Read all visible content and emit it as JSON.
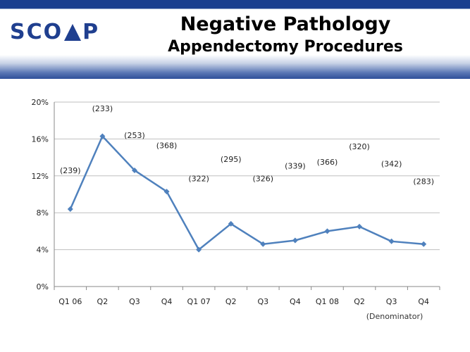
{
  "header": {
    "logo_text_1": "SCO",
    "logo_text_2": "P",
    "title": "Negative Pathology",
    "subtitle": "Appendectomy Procedures"
  },
  "chart_data": {
    "type": "line",
    "title": "Negative Pathology",
    "subtitle": "Appendectomy Procedures",
    "categories": [
      "Q1 06",
      "Q2",
      "Q3",
      "Q4",
      "Q1 07",
      "Q2",
      "Q3",
      "Q4",
      "Q1 08",
      "Q2",
      "Q3",
      "Q4"
    ],
    "series": [
      {
        "values": [
          8.4,
          16.3,
          12.6,
          10.3,
          4.0,
          6.8,
          4.6,
          5.0,
          6.0,
          6.5,
          4.9,
          4.6
        ],
        "color": "#4f81bd"
      }
    ],
    "denominators": [
      "(239)",
      "(233)",
      "(253)",
      "(368)",
      "(322)",
      "(295)",
      "(326)",
      "(339)",
      "(366)",
      "(320)",
      "(342)",
      "(283)"
    ],
    "denominator_label_values": [
      12.3,
      19.0,
      16.1,
      15.0,
      11.4,
      13.5,
      11.4,
      12.8,
      13.2,
      14.9,
      13.0,
      11.1
    ],
    "denominator_note": "(Denominator)",
    "yticks": [
      "0%",
      "4%",
      "8%",
      "12%",
      "16%",
      "20%"
    ],
    "ylim": [
      0,
      20
    ],
    "grid": true,
    "xlabel": "",
    "ylabel": ""
  }
}
